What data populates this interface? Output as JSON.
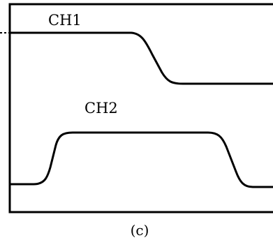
{
  "channels": {
    "ch1_label": "CH1",
    "ch2_label": "CH2"
  },
  "caption": "(c)"
}
